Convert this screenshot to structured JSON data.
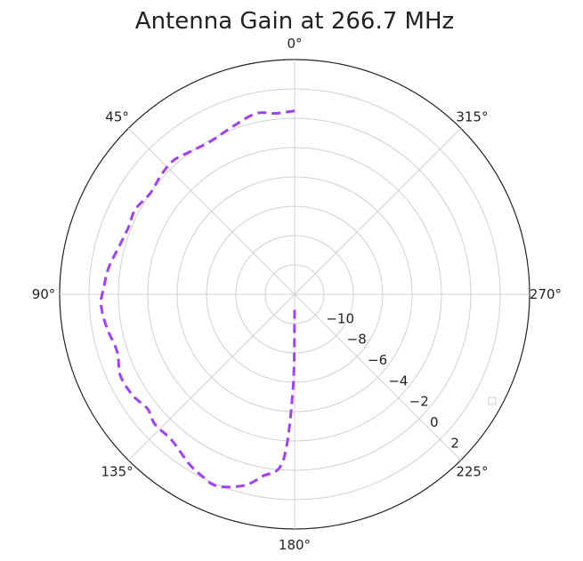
{
  "chart_data": {
    "type": "polar-line",
    "title": "Antenna Gain at 266.7 MHz",
    "theta_direction": "counterclockwise",
    "theta_zero": "top",
    "angle_ticks": [
      0,
      45,
      90,
      135,
      180,
      225,
      270,
      315
    ],
    "angle_tick_labels": [
      "0°",
      "45°",
      "90°",
      "135°",
      "180°",
      "225°",
      "270°",
      "315°"
    ],
    "rlim": [
      -12,
      4
    ],
    "radial_ticks": [
      -10,
      -8,
      -6,
      -4,
      -2,
      0,
      2
    ],
    "radial_tick_labels": [
      "−10",
      "−8",
      "−6",
      "−4",
      "−2",
      "0",
      "2"
    ],
    "radial_label_angle_deg": 225,
    "grid": true,
    "series": [
      {
        "color": "#a040ff",
        "style": "dashed",
        "points": [
          {
            "theta": 0,
            "r": 0.5
          },
          {
            "theta": 6,
            "r": 0.4
          },
          {
            "theta": 12,
            "r": 0.6
          },
          {
            "theta": 20,
            "r": 0.2
          },
          {
            "theta": 28,
            "r": -0.1
          },
          {
            "theta": 35,
            "r": 0.0
          },
          {
            "theta": 42,
            "r": 0.3
          },
          {
            "theta": 48,
            "r": 0.2
          },
          {
            "theta": 55,
            "r": 0.0
          },
          {
            "theta": 62,
            "r": 0.3
          },
          {
            "theta": 68,
            "r": 0.2
          },
          {
            "theta": 75,
            "r": 0.4
          },
          {
            "theta": 82,
            "r": 0.8
          },
          {
            "theta": 88,
            "r": 1.0
          },
          {
            "theta": 93,
            "r": 1.2
          },
          {
            "theta": 100,
            "r": 1.0
          },
          {
            "theta": 108,
            "r": 0.7
          },
          {
            "theta": 115,
            "r": 1.1
          },
          {
            "theta": 122,
            "r": 1.0
          },
          {
            "theta": 128,
            "r": 0.7
          },
          {
            "theta": 133,
            "r": 1.0
          },
          {
            "theta": 140,
            "r": 1.0
          },
          {
            "theta": 148,
            "r": 1.6
          },
          {
            "theta": 153,
            "r": 1.9
          },
          {
            "theta": 158,
            "r": 2.1
          },
          {
            "theta": 165,
            "r": 1.5
          },
          {
            "theta": 170,
            "r": 0.6
          },
          {
            "theta": 176,
            "r": -0.6
          },
          {
            "theta": 179,
            "r": -5.5
          },
          {
            "theta": 180,
            "r": -11.0
          }
        ]
      }
    ]
  }
}
